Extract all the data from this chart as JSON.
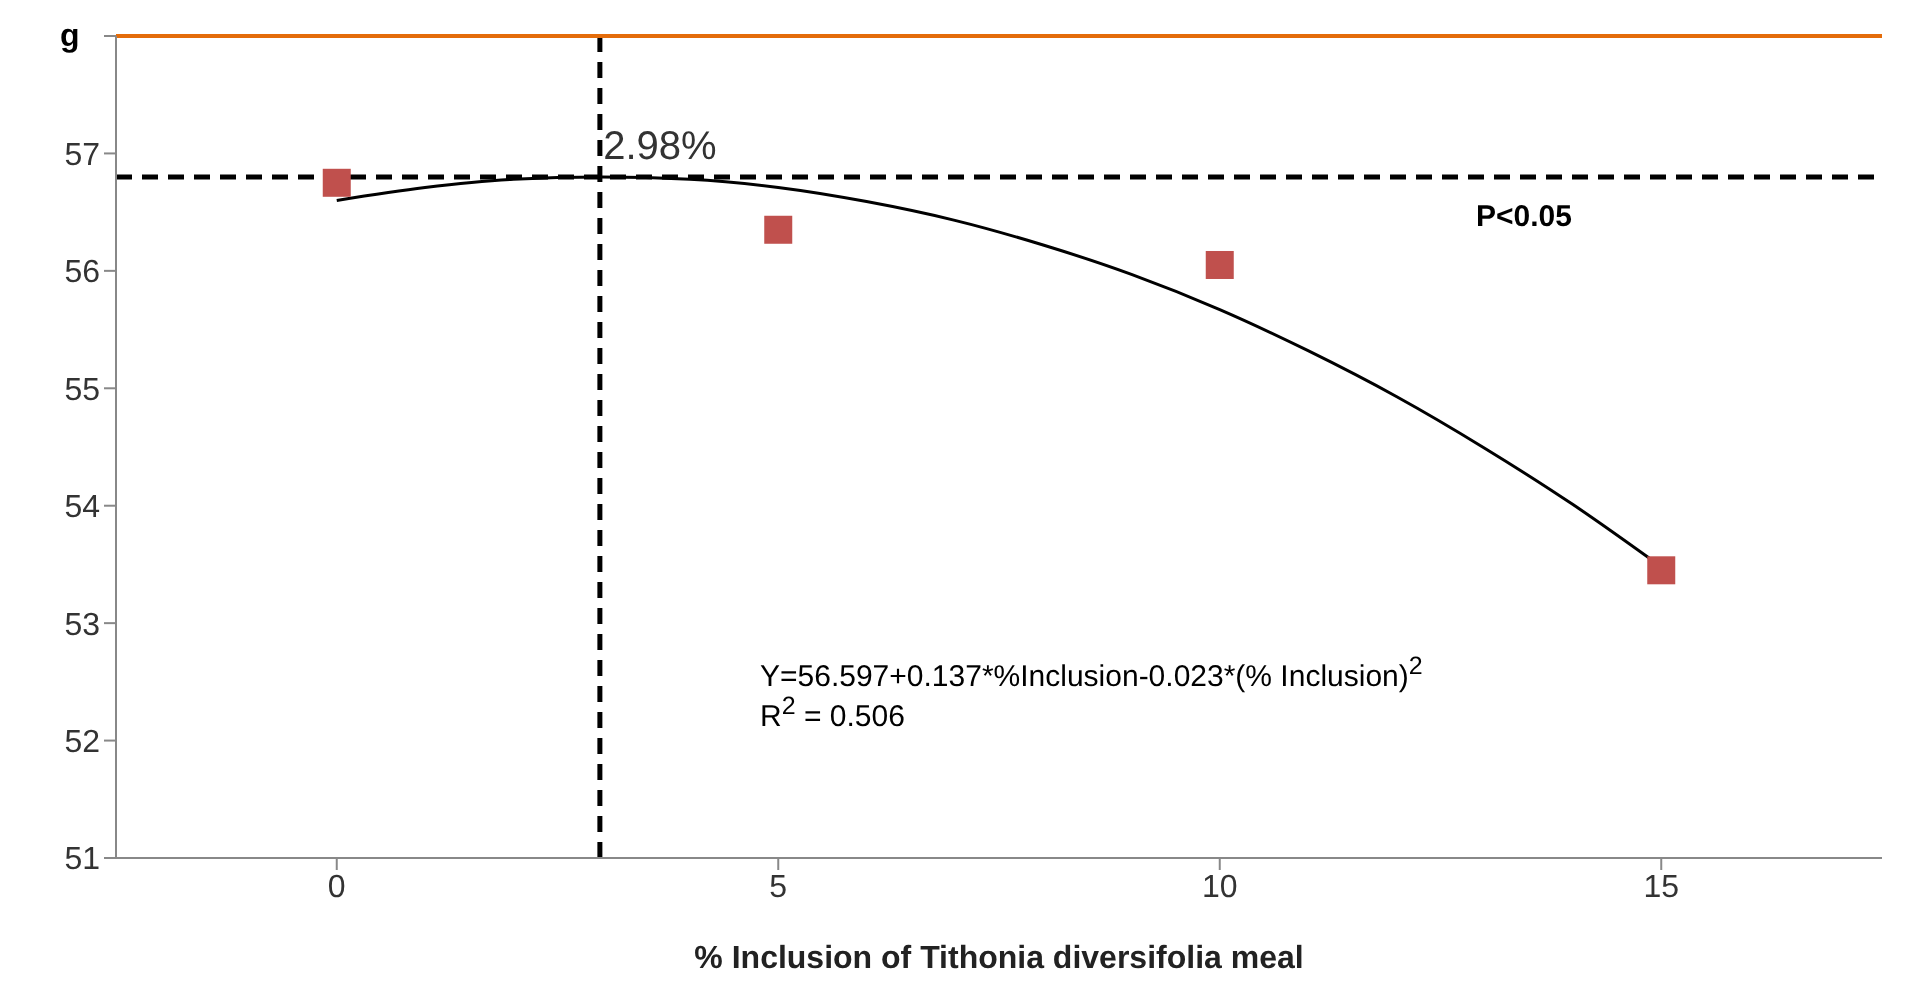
{
  "chart_data": {
    "type": "scatter",
    "xlabel": "% Inclusion of Tithonia diversifolia meal",
    "ylabel": "g",
    "x": [
      0,
      5,
      10,
      15
    ],
    "series": [
      {
        "color": "#c0504d",
        "marker": "square",
        "values": [
          56.75,
          56.35,
          56.05,
          53.45
        ]
      },
      {
        "type": "line",
        "color": "#000000",
        "marker": "none",
        "x": [
          0,
          1,
          2,
          3,
          4,
          5,
          6,
          7,
          8,
          9,
          10,
          11,
          12,
          13,
          14,
          15
        ],
        "values": [
          56.6,
          56.71,
          56.78,
          56.8,
          56.78,
          56.71,
          56.59,
          56.43,
          56.22,
          55.97,
          55.67,
          55.32,
          54.93,
          54.49,
          54.01,
          53.48
        ]
      }
    ],
    "xlim": [
      -2.5,
      17.5
    ],
    "xticks": [
      0,
      5,
      10,
      15
    ],
    "ylim": [
      51,
      58
    ],
    "yticks": [
      51,
      52,
      53,
      54,
      55,
      56,
      57,
      {
        "value": 58,
        "label": null
      }
    ],
    "ref_lines": [
      {
        "axis": "x",
        "value": 2.98,
        "color": "#000000",
        "line_style": "dashed"
      },
      {
        "axis": "y",
        "value": 56.8,
        "color": "#000000",
        "line_style": "dashed"
      },
      {
        "axis": "y",
        "value": 58,
        "color": "#e46c0a",
        "line_style": "solid"
      }
    ],
    "annotations": [
      {
        "text": "2.98%",
        "x": 2.98,
        "y": 56.8
      },
      "P<0.05",
      "Y=56.597+0.137*%Inclusion-0.023*(% Inclusion)$^{2}$",
      "R$^{2}$ = 0.506"
    ]
  }
}
